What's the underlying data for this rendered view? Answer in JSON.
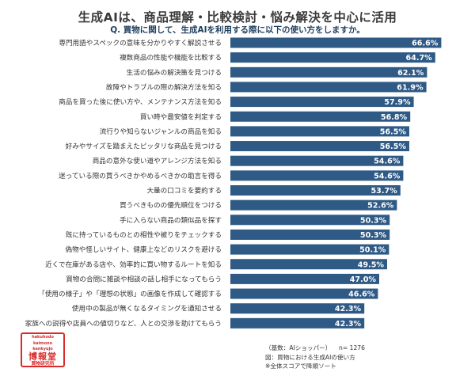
{
  "title": "生成AIは、商品理解・比較検討・悩み解決を中心に活用",
  "question": "Q. 買物に関して、生成AIを利用する際に以下の使い方をしますか。",
  "colors": {
    "bar": "#2f5a86",
    "value_text": "#ffffff",
    "title_text": "#3a3a3a",
    "question_text": "#1f3f5f",
    "logo": "#d92b2b"
  },
  "chart_data": {
    "type": "bar",
    "orientation": "horizontal",
    "unit": "%",
    "xlim": [
      0,
      70
    ],
    "grid": false,
    "legend": "none",
    "categories": [
      "専門用語やスペックの意味を分かりやすく解説させる",
      "複数商品の性能や機能を比較する",
      "生活の悩みの解決策を見つける",
      "故障やトラブルの際の解決方法を知る",
      "商品を買った後に使い方や、メンテナンス方法を知る",
      "買い時や最安値を判定する",
      "流行りや知らないジャンルの商品を知る",
      "好みやサイズを踏まえたピッタリな商品を見つける",
      "商品の意外な使い道やアレンジ方法を知る",
      "迷っている際の買うべきかやめるべきかの助言を得る",
      "大量の口コミを要約する",
      "買うべきものの優先順位をつける",
      "手に入らない商品の類似品を探す",
      "既に持っているものとの相性や被りをチェックする",
      "偽物や怪しいサイト、健康上などのリスクを避ける",
      "近くで在庫がある店や、効率的に買い物するルートを知る",
      "買物の合間に雑談や相談の話し相手になってもらう",
      "「使用の様子」や「理想の状態」の画像を作成して確認する",
      "使用中の製品が無くなるタイミングを通知させる",
      "家族への説得や店員への値切りなど、人との交渉を助けてもらう"
    ],
    "values": [
      66.6,
      64.7,
      62.1,
      61.9,
      57.9,
      56.8,
      56.5,
      56.5,
      54.6,
      54.6,
      53.7,
      52.6,
      50.3,
      50.3,
      50.1,
      49.5,
      47.0,
      46.6,
      42.3,
      42.3
    ],
    "value_labels": [
      "66.6%",
      "64.7%",
      "62.1%",
      "61.9%",
      "57.9%",
      "56.8%",
      "56.5%",
      "56.5%",
      "54.6%",
      "54.6%",
      "53.7%",
      "52.6%",
      "50.3%",
      "50.3%",
      "50.1%",
      "49.5%",
      "47.0%",
      "46.6%",
      "42.3%",
      "42.3%"
    ]
  },
  "logo": {
    "text_en_1": "hakuhodo",
    "text_en_2": "kaimono",
    "text_en_3": "kenkyujo",
    "text_jp_1": "博報堂",
    "text_jp_2": "買物研究所"
  },
  "notes": {
    "base": "（基数：AIショッパー）",
    "n": "n= 1276",
    "figure_title": "図：買物における生成AIの使い方",
    "sort_note": "※全体スコアで降順ソート"
  }
}
